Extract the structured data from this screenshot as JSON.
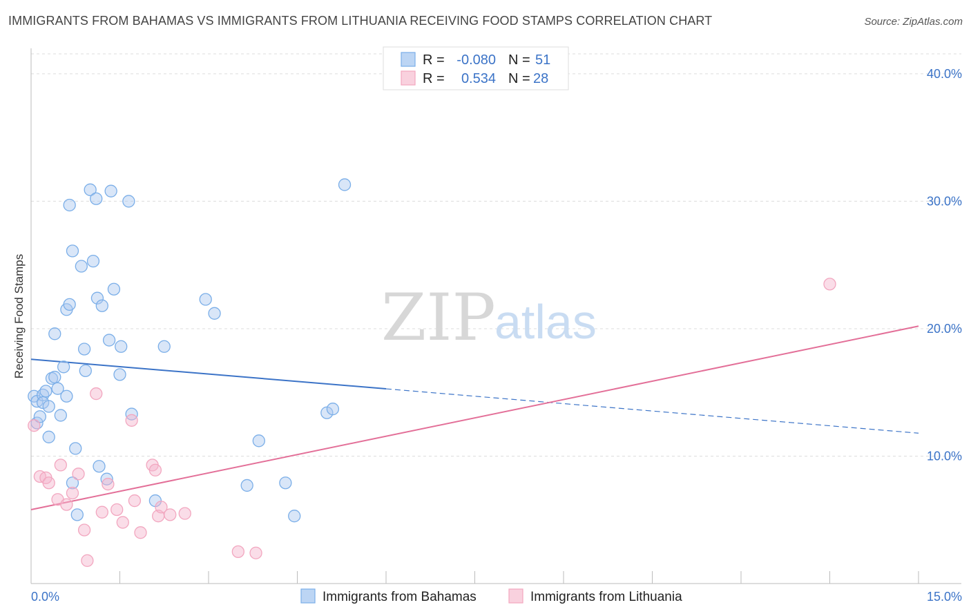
{
  "title": "IMMIGRANTS FROM BAHAMAS VS IMMIGRANTS FROM LITHUANIA RECEIVING FOOD STAMPS CORRELATION CHART",
  "source": "Source: ZipAtlas.com",
  "watermark": {
    "zip": "ZIP",
    "atlas": "atlas"
  },
  "colors": {
    "blue": "#7aaee8",
    "blue_line": "#3b73c7",
    "pink": "#f2a6bf",
    "pink_line": "#e36f98",
    "value_text": "#3b73c7"
  },
  "legend_top": [
    {
      "r_label": "R =",
      "r_value": "-0.080",
      "n_label": "N =",
      "n_value": "51"
    },
    {
      "r_label": "R =",
      "r_value": "0.534",
      "n_label": "N =",
      "n_value": "28"
    }
  ],
  "chart_data": {
    "type": "scatter",
    "title": "IMMIGRANTS FROM BAHAMAS VS IMMIGRANTS FROM LITHUANIA RECEIVING FOOD STAMPS CORRELATION CHART",
    "xlabel": "",
    "ylabel": "Receiving Food Stamps",
    "xlim": [
      0,
      15
    ],
    "ylim": [
      0,
      42
    ],
    "x_tick_labels": [
      "0.0%",
      "15.0%"
    ],
    "y_ticks": [
      10,
      20,
      30,
      40
    ],
    "y_tick_labels": [
      "10.0%",
      "20.0%",
      "30.0%",
      "40.0%"
    ],
    "grid": true,
    "legend_position": "bottom",
    "series": [
      {
        "name": "Immigrants from Bahamas",
        "color": "#7aaee8",
        "r": -0.08,
        "n": 51,
        "trend": {
          "x0": 0.0,
          "y0": 17.6,
          "x1": 15.0,
          "y1": 11.8,
          "solid_until_x": 6.0
        },
        "points": [
          [
            0.05,
            14.7
          ],
          [
            0.1,
            14.3
          ],
          [
            0.1,
            12.6
          ],
          [
            0.15,
            13.1
          ],
          [
            0.2,
            14.8
          ],
          [
            0.2,
            14.2
          ],
          [
            0.25,
            15.1
          ],
          [
            0.3,
            11.5
          ],
          [
            0.3,
            13.9
          ],
          [
            0.35,
            16.1
          ],
          [
            0.4,
            16.2
          ],
          [
            0.4,
            19.6
          ],
          [
            0.45,
            15.3
          ],
          [
            0.5,
            13.2
          ],
          [
            0.55,
            17.0
          ],
          [
            0.6,
            14.7
          ],
          [
            0.6,
            21.5
          ],
          [
            0.65,
            21.9
          ],
          [
            0.65,
            29.7
          ],
          [
            0.7,
            7.9
          ],
          [
            0.7,
            26.1
          ],
          [
            0.75,
            10.6
          ],
          [
            0.78,
            5.4
          ],
          [
            0.85,
            24.9
          ],
          [
            0.9,
            18.4
          ],
          [
            0.92,
            16.7
          ],
          [
            1.0,
            30.9
          ],
          [
            1.05,
            25.3
          ],
          [
            1.1,
            30.2
          ],
          [
            1.12,
            22.4
          ],
          [
            1.15,
            9.2
          ],
          [
            1.2,
            21.8
          ],
          [
            1.28,
            8.2
          ],
          [
            1.32,
            19.1
          ],
          [
            1.35,
            30.8
          ],
          [
            1.4,
            23.1
          ],
          [
            1.5,
            16.4
          ],
          [
            1.52,
            18.6
          ],
          [
            1.65,
            30.0
          ],
          [
            1.7,
            13.3
          ],
          [
            2.1,
            6.5
          ],
          [
            2.25,
            18.6
          ],
          [
            2.95,
            22.3
          ],
          [
            3.1,
            21.2
          ],
          [
            3.65,
            7.7
          ],
          [
            3.85,
            11.2
          ],
          [
            4.3,
            7.9
          ],
          [
            4.45,
            5.3
          ],
          [
            5.0,
            13.4
          ],
          [
            5.1,
            13.7
          ],
          [
            5.3,
            31.3
          ]
        ]
      },
      {
        "name": "Immigrants from Lithuania",
        "color": "#f2a6bf",
        "r": 0.534,
        "n": 28,
        "trend": {
          "x0": 0.0,
          "y0": 5.8,
          "x1": 15.0,
          "y1": 20.2
        },
        "points": [
          [
            0.05,
            12.4
          ],
          [
            0.15,
            8.4
          ],
          [
            0.25,
            8.3
          ],
          [
            0.3,
            7.9
          ],
          [
            0.45,
            6.6
          ],
          [
            0.5,
            9.3
          ],
          [
            0.6,
            6.2
          ],
          [
            0.7,
            7.1
          ],
          [
            0.8,
            8.6
          ],
          [
            0.9,
            4.2
          ],
          [
            0.95,
            1.8
          ],
          [
            1.1,
            14.9
          ],
          [
            1.2,
            5.6
          ],
          [
            1.3,
            7.8
          ],
          [
            1.45,
            5.8
          ],
          [
            1.55,
            4.8
          ],
          [
            1.7,
            12.8
          ],
          [
            1.75,
            6.5
          ],
          [
            1.85,
            4.0
          ],
          [
            2.05,
            9.3
          ],
          [
            2.1,
            8.9
          ],
          [
            2.15,
            5.3
          ],
          [
            2.2,
            6.0
          ],
          [
            2.35,
            5.4
          ],
          [
            2.6,
            5.5
          ],
          [
            3.5,
            2.5
          ],
          [
            3.8,
            2.4
          ],
          [
            13.5,
            23.5
          ]
        ]
      }
    ]
  }
}
